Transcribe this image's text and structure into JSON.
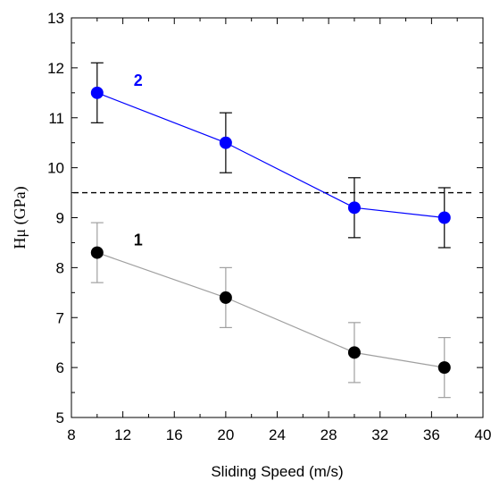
{
  "chart_data": {
    "type": "scatter",
    "xlabel": "Sliding Speed (m/s)",
    "ylabel": "Hμ (GPa)",
    "xlim": [
      8,
      40
    ],
    "ylim": [
      5,
      13
    ],
    "xticks": [
      "8",
      "12",
      "16",
      "20",
      "24",
      "28",
      "32",
      "36",
      "40"
    ],
    "yticks": [
      "5",
      "6",
      "7",
      "8",
      "9",
      "10",
      "11",
      "12",
      "13"
    ],
    "grid": false,
    "reference_line": {
      "y": 9.5,
      "style": "dashed",
      "color": "#000000"
    },
    "series": [
      {
        "name": "2",
        "color": "#0000ff",
        "errorbar_color": "#000000",
        "x": [
          10,
          20,
          30,
          37
        ],
        "y": [
          11.5,
          10.5,
          9.2,
          9.0
        ],
        "err": [
          0.6,
          0.6,
          0.6,
          0.6
        ]
      },
      {
        "name": "1",
        "color": "#000000",
        "line_color": "#a0a0a0",
        "errorbar_color": "#a0a0a0",
        "x": [
          10,
          20,
          30,
          37
        ],
        "y": [
          8.3,
          7.4,
          6.3,
          6.0
        ],
        "err": [
          0.6,
          0.6,
          0.6,
          0.6
        ]
      }
    ]
  }
}
